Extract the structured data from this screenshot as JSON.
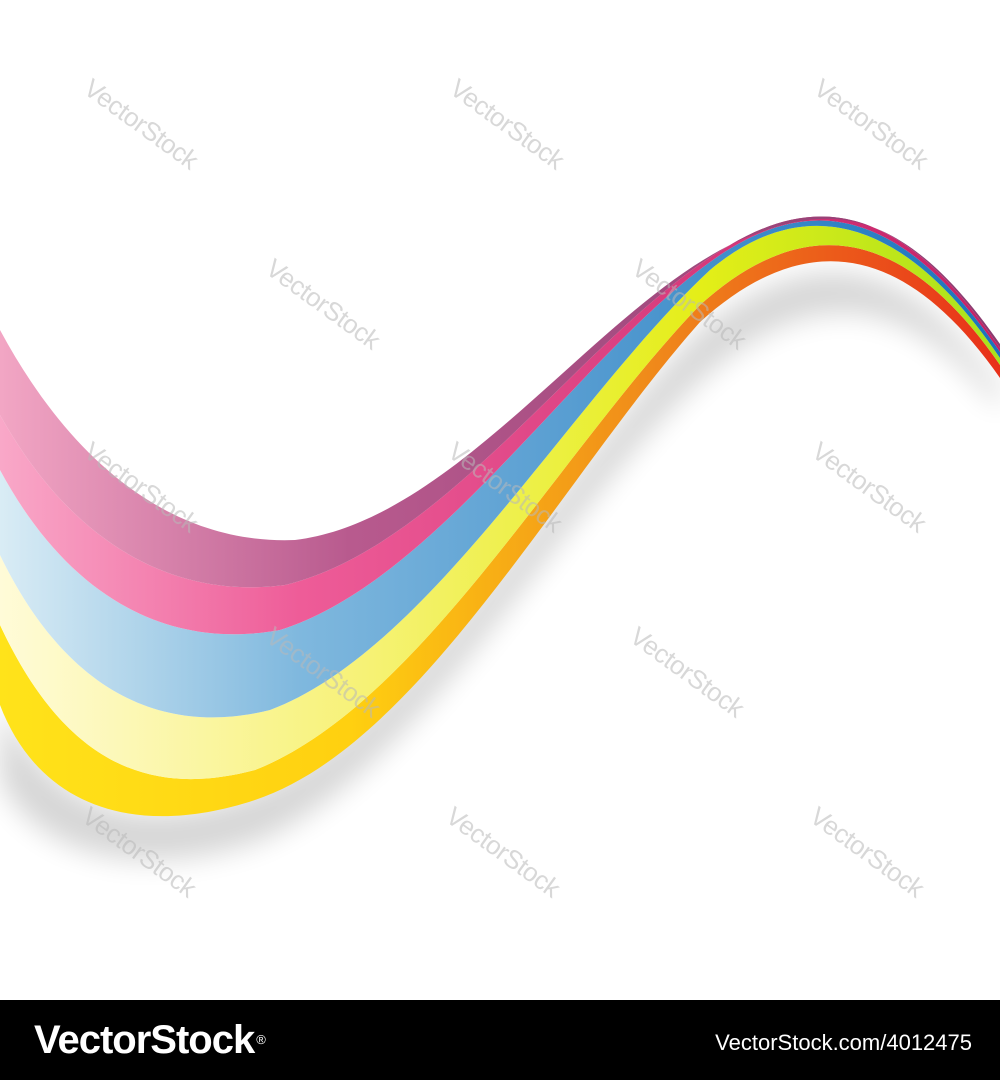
{
  "image": {
    "background_color": "#ffffff",
    "ribbon_colors": {
      "band_1_light": "#f2a6c4",
      "band_1_dark": "#9a4077",
      "band_2_light": "#f07aaa",
      "band_2_dark": "#cc2a6e",
      "band_3_light": "#bcdff0",
      "band_3_dark": "#1f7cc2",
      "band_4_light": "#fbf4a4",
      "band_4_dark": "#a6e21c",
      "band_5_light": "#ffe00a",
      "band_5_dark": "#ea3517"
    },
    "watermark_text": "VectorStock",
    "watermark_icon": "registered-mark"
  },
  "footer": {
    "logo_text": "VectorStock",
    "logo_mark": "®",
    "url": "VectorStock.com/4012475"
  }
}
